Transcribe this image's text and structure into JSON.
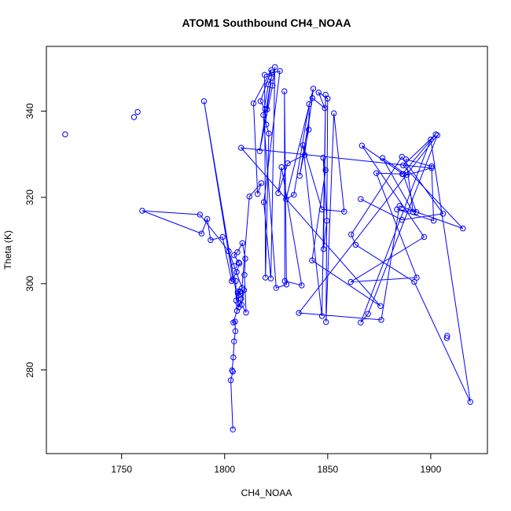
{
  "chart_data": {
    "type": "line",
    "title": "ATOM1 Southbound CH4_NOAA",
    "xlabel": "CH4_NOAA",
    "ylabel": "Theta (K)",
    "xlim": [
      1713.5,
      1927.5
    ],
    "ylim": [
      260.6,
      355.0
    ],
    "xticks": [
      1750,
      1800,
      1850,
      1900
    ],
    "yticks": [
      280,
      300,
      320,
      340
    ],
    "grid": false,
    "legend": "none",
    "colors": {
      "series": "#0000ff",
      "axis": "#000000"
    },
    "marker": "open-circle",
    "series": [
      {
        "points": [
          [
            1804.0,
            266.2
          ],
          [
            1803.0,
            277.6
          ],
          [
            1804.0,
            279.6
          ],
          [
            1803.6,
            279.9
          ],
          [
            1804.2,
            282.9
          ],
          [
            1804.6,
            286.6
          ],
          [
            1805.2,
            289.0
          ],
          [
            1805.0,
            291.2
          ],
          [
            1804.2,
            291.0
          ],
          [
            1806.0,
            293.7
          ],
          [
            1806.6,
            295.5
          ],
          [
            1806.8,
            297.3
          ],
          [
            1806.4,
            298.2
          ],
          [
            1807.4,
            298.2
          ],
          [
            1807.6,
            298.2
          ],
          [
            1806.4,
            297.8
          ],
          [
            1805.6,
            296.1
          ],
          [
            1805.4,
            300.6
          ],
          [
            1804.0,
            301.0
          ],
          [
            1790.0,
            342.3
          ],
          [
            1806.8,
            294.5
          ],
          [
            1808.0,
            296.5
          ],
          [
            1809.4,
            298.5
          ],
          [
            1808.2,
            295.1
          ],
          [
            1810.4,
            293.3
          ],
          [
            1809.6,
            302.0
          ],
          [
            1810.0,
            305.8
          ],
          [
            1808.6,
            309.4
          ],
          [
            1806.2,
            307.3
          ],
          [
            1804.6,
            306.6
          ],
          [
            1806.8,
            304.9
          ],
          [
            1807.2,
            304.7
          ],
          [
            1805.8,
            302.7
          ],
          [
            1803.4,
            300.6
          ],
          [
            1799.0,
            310.8
          ],
          [
            1793.2,
            310.1
          ],
          [
            1791.6,
            315.0
          ],
          [
            1788.8,
            311.6
          ],
          [
            1760.0,
            316.9
          ],
          [
            1788.0,
            316.0
          ],
          [
            1802.0,
            307.5
          ],
          [
            1804.6,
            304.1
          ],
          [
            1808.4,
            299.0
          ],
          [
            1812.0,
            320.2
          ],
          [
            1817.8,
            323.3
          ],
          [
            1816.0,
            320.8
          ],
          [
            1814.0,
            341.8
          ],
          [
            1822.6,
            349.5
          ],
          [
            1817.4,
            342.3
          ],
          [
            1819.6,
            340.5
          ],
          [
            1820.2,
            336.9
          ],
          [
            1821.4,
            334.8
          ],
          [
            1819.8,
            301.4
          ],
          [
            1819.4,
            348.4
          ],
          [
            1826.8,
            349.3
          ],
          [
            1819.0,
            318.9
          ],
          [
            1822.4,
            301.2
          ],
          [
            1824.4,
            350.2
          ],
          [
            1823.2,
            345.9
          ],
          [
            1817.0,
            330.7
          ],
          [
            1823.0,
            349.0
          ],
          [
            1820.6,
            340.4
          ],
          [
            1822.6,
            347.7
          ],
          [
            1821.2,
            346.2
          ],
          [
            1818.8,
            339.1
          ],
          [
            1825.0,
            299.0
          ],
          [
            1830.0,
            299.8
          ],
          [
            1829.0,
            344.6
          ],
          [
            1829.2,
            300.6
          ],
          [
            1837.4,
            299.6
          ],
          [
            1827.6,
            327.0
          ],
          [
            1826.0,
            321.0
          ],
          [
            1830.6,
            327.9
          ],
          [
            1838.8,
            329.8
          ],
          [
            1843.0,
            345.2
          ],
          [
            1829.8,
            319.6
          ],
          [
            1833.6,
            320.6
          ],
          [
            1841.0,
            341.6
          ],
          [
            1840.8,
            335.7
          ],
          [
            1836.4,
            325.0
          ],
          [
            1842.6,
            343.0
          ],
          [
            1848.6,
            340.7
          ],
          [
            1845.6,
            344.3
          ],
          [
            1850.0,
            342.9
          ],
          [
            1849.2,
            291.1
          ],
          [
            1853.0,
            339.5
          ],
          [
            1858.0,
            316.7
          ],
          [
            1847.2,
            317.2
          ],
          [
            1838.0,
            332.1
          ],
          [
            1847.2,
            292.5
          ],
          [
            1849.0,
            343.8
          ],
          [
            1848.0,
            308.0
          ],
          [
            1849.6,
            314.6
          ],
          [
            1847.8,
            329.2
          ],
          [
            1849.0,
            326.3
          ],
          [
            1842.4,
            305.4
          ],
          [
            1875.6,
            294.8
          ],
          [
            1808.0,
            331.5
          ],
          [
            1900.4,
            326.8
          ],
          [
            1888.4,
            325.2
          ],
          [
            1876.6,
            329.1
          ],
          [
            1891.4,
            316.6
          ],
          [
            1888.0,
            328.8
          ],
          [
            1900.4,
            327.2
          ],
          [
            1901.4,
            314.6
          ],
          [
            1883.6,
            317.2
          ],
          [
            1893.0,
            316.6
          ],
          [
            1886.6,
            325.4
          ],
          [
            1866.6,
            332.0
          ],
          [
            1896.8,
            310.8
          ],
          [
            1861.2,
            300.4
          ],
          [
            1893.2,
            301.4
          ],
          [
            1873.6,
            325.6
          ],
          [
            1886.2,
            325.4
          ],
          [
            1902.4,
            334.6
          ],
          [
            1886.6,
            327.4
          ],
          [
            1915.6,
            312.8
          ],
          [
            1884.8,
            318.0
          ],
          [
            1876.0,
            291.6
          ],
          [
            1836.0,
            293.2
          ],
          [
            1903.2,
            334.4
          ],
          [
            1869.6,
            293.0
          ],
          [
            1866.0,
            291.0
          ],
          [
            1900.0,
            333.4
          ],
          [
            1919.2,
            272.6
          ],
          [
            1892.0,
            300.4
          ],
          [
            1863.6,
            309.0
          ],
          [
            1861.4,
            311.4
          ],
          [
            1886.0,
            329.4
          ],
          [
            1906.0,
            316.2
          ],
          [
            1886.0,
            314.8
          ],
          [
            1866.0,
            319.6
          ]
        ]
      }
    ],
    "extra_points": [
      [
        1722.6,
        334.6
      ],
      [
        1756.0,
        338.6
      ],
      [
        1757.8,
        339.8
      ],
      [
        1908.0,
        287.9
      ],
      [
        1907.8,
        287.4
      ]
    ]
  }
}
